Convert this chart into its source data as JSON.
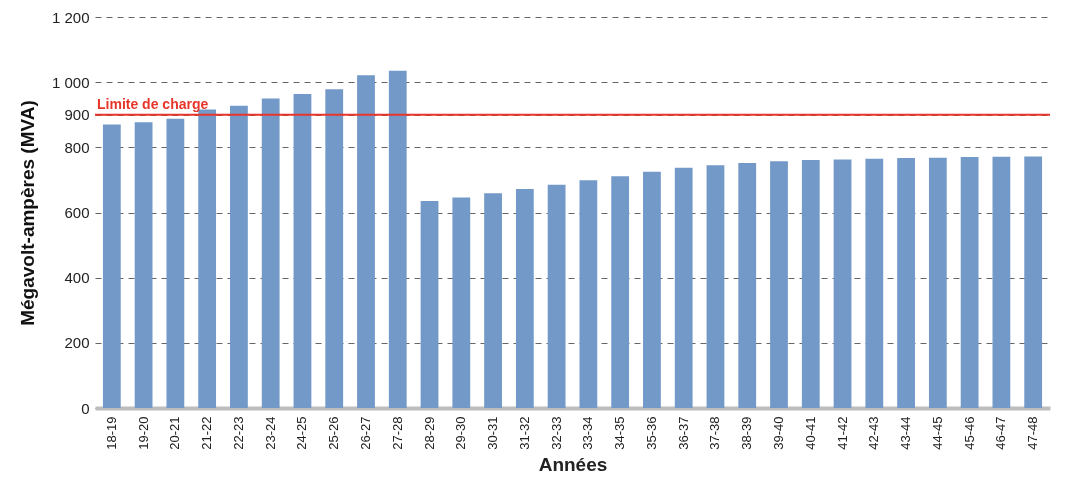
{
  "chart_data": {
    "type": "bar",
    "xlabel": "Années",
    "ylabel": "Mégavolt-ampères (MVA)",
    "categories": [
      "18-19",
      "19-20",
      "20-21",
      "21-22",
      "22-23",
      "23-24",
      "24-25",
      "25-26",
      "26-27",
      "27-28",
      "28-29",
      "29-30",
      "30-31",
      "31-32",
      "32-33",
      "33-34",
      "34-35",
      "35-36",
      "36-37",
      "37-38",
      "38-39",
      "39-40",
      "40-41",
      "41-42",
      "42-43",
      "43-44",
      "44-45",
      "45-46",
      "46-47",
      "47-48"
    ],
    "values": [
      870,
      877,
      888,
      916,
      928,
      950,
      964,
      978,
      1021,
      1035,
      635,
      646,
      659,
      672,
      685,
      699,
      711,
      725,
      737,
      745,
      752,
      757,
      761,
      763,
      765,
      767,
      768,
      770,
      771,
      772
    ],
    "color": "#7399c9",
    "ylim": [
      0,
      1200
    ],
    "yticks": [
      0,
      200,
      400,
      600,
      800,
      900,
      {
        "value": 1000,
        "label": "1 000"
      },
      {
        "value": 1200,
        "label": "1 200"
      }
    ],
    "grid": "y",
    "ref_lines": [
      {
        "axis": "y",
        "value": 900,
        "label": "Limite de charge",
        "color": "#e8352a"
      }
    ]
  }
}
